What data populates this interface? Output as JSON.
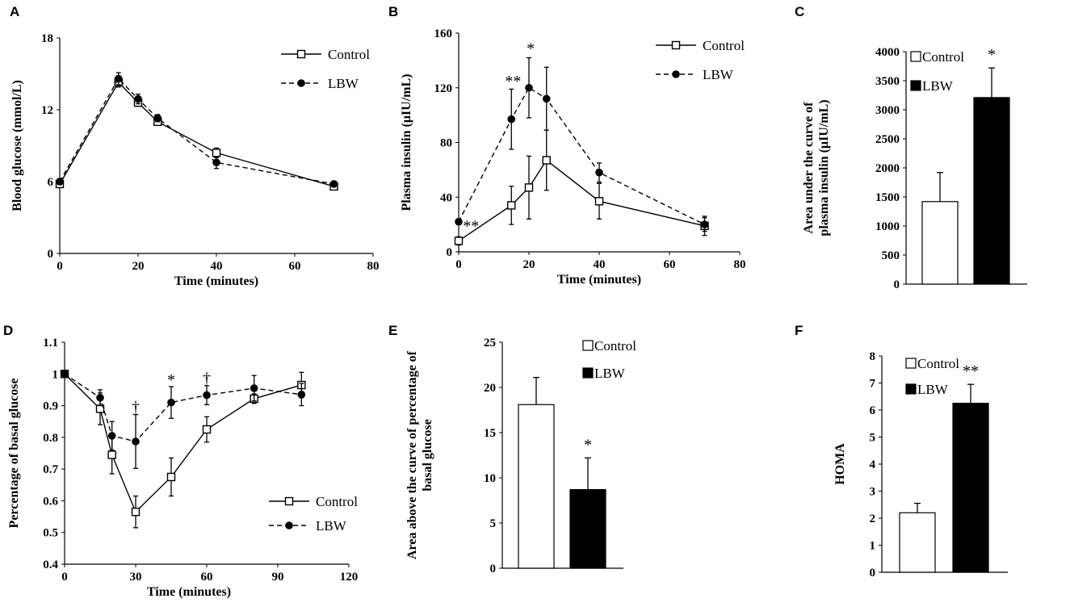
{
  "colors": {
    "ink": "#000000",
    "control_fill": "#ffffff",
    "lbw_fill": "#000000"
  },
  "chart_data": [
    {
      "panel": "A",
      "type": "line",
      "title": "",
      "xlabel": "Time (minutes)",
      "ylabel": "Blood glucose (mmol/L)",
      "xlim": [
        0,
        80
      ],
      "ylim": [
        0,
        18
      ],
      "xticks": [
        0,
        20,
        40,
        60,
        80
      ],
      "yticks": [
        0,
        6,
        12,
        18
      ],
      "legend_position": "top-right",
      "series": [
        {
          "name": "Control",
          "marker": "open-square",
          "style": "solid",
          "x": [
            0,
            15,
            20,
            25,
            40,
            70
          ],
          "y": [
            5.8,
            14.3,
            12.6,
            11.0,
            8.4,
            5.6
          ],
          "err": [
            0.25,
            0.4,
            0.3,
            0.3,
            0.4,
            0.2
          ]
        },
        {
          "name": "LBW",
          "marker": "filled-circle",
          "style": "dashed",
          "x": [
            0,
            15,
            20,
            25,
            40,
            70
          ],
          "y": [
            6.0,
            14.6,
            12.9,
            11.3,
            7.6,
            5.8
          ],
          "err": [
            0.25,
            0.5,
            0.4,
            0.3,
            0.5,
            0.2
          ]
        }
      ],
      "annotations": []
    },
    {
      "panel": "B",
      "type": "line",
      "title": "",
      "xlabel": "Time (minutes)",
      "ylabel": "Plasma insulin (μIU/mL)",
      "xlim": [
        0,
        80
      ],
      "ylim": [
        0,
        160
      ],
      "xticks": [
        0,
        20,
        40,
        60,
        80
      ],
      "yticks": [
        0,
        40,
        80,
        120,
        160
      ],
      "legend_position": "top-right",
      "series": [
        {
          "name": "Control",
          "marker": "open-square",
          "style": "solid",
          "x": [
            0,
            15,
            20,
            25,
            40,
            70
          ],
          "y": [
            8,
            34,
            47,
            67,
            37,
            19
          ],
          "err": [
            3,
            14,
            23,
            22,
            13,
            7
          ]
        },
        {
          "name": "LBW",
          "marker": "filled-circle",
          "style": "dashed",
          "x": [
            0,
            15,
            20,
            25,
            40,
            70
          ],
          "y": [
            22,
            97,
            120,
            112,
            58,
            20
          ],
          "err": [
            2,
            22,
            22,
            23,
            7,
            5
          ]
        }
      ],
      "annotations": [
        {
          "text": "**",
          "x": 3.5,
          "y": 15
        },
        {
          "text": "**",
          "x": 15.5,
          "y": 121
        },
        {
          "text": "*",
          "x": 20.5,
          "y": 145
        }
      ]
    },
    {
      "panel": "C",
      "type": "bar",
      "title": "",
      "xlabel": "",
      "ylabel": "Area under the curve of plasma insulin (μIU/mL)",
      "ylim": [
        0,
        4000
      ],
      "yticks": [
        0,
        500,
        1000,
        1500,
        2000,
        2500,
        3000,
        3500,
        4000
      ],
      "categories": [
        "Control",
        "LBW"
      ],
      "values": [
        1420,
        3210
      ],
      "err": [
        500,
        510
      ],
      "legend_position": "top-left",
      "annotations": [
        {
          "text": "*",
          "category": 1
        }
      ]
    },
    {
      "panel": "D",
      "type": "line",
      "title": "",
      "xlabel": "Time (minutes)",
      "ylabel": "Percentage of basal glucose",
      "xlim": [
        0,
        120
      ],
      "ylim": [
        0.4,
        1.1
      ],
      "xticks": [
        0,
        30,
        60,
        90,
        120
      ],
      "yticks": [
        0.4,
        0.5,
        0.6,
        0.7,
        0.8,
        0.9,
        1.0,
        1.1
      ],
      "legend_position": "bottom-right",
      "series": [
        {
          "name": "Control",
          "marker": "open-square",
          "style": "solid",
          "x": [
            0,
            15,
            20,
            30,
            45,
            60,
            80,
            100
          ],
          "y": [
            1.0,
            0.89,
            0.745,
            0.565,
            0.675,
            0.825,
            0.922,
            0.965
          ],
          "err": [
            0,
            0.05,
            0.06,
            0.05,
            0.06,
            0.04,
            0.015,
            0.04
          ]
        },
        {
          "name": "LBW",
          "marker": "filled-circle",
          "style": "dashed",
          "x": [
            0,
            15,
            20,
            30,
            45,
            60,
            80,
            100
          ],
          "y": [
            1.0,
            0.925,
            0.805,
            0.787,
            0.91,
            0.933,
            0.955,
            0.935
          ],
          "err": [
            0,
            0.025,
            0.045,
            0.085,
            0.05,
            0.03,
            0.04,
            0.035
          ]
        }
      ],
      "annotations": [
        {
          "text": "†",
          "x": 30,
          "y": 0.88
        },
        {
          "text": "*",
          "x": 45,
          "y": 0.965
        },
        {
          "text": "†",
          "x": 60,
          "y": 0.97
        }
      ]
    },
    {
      "panel": "E",
      "type": "bar",
      "title": "",
      "xlabel": "",
      "ylabel": "Area above the curve of percentage of basal glucose",
      "ylim": [
        0,
        25
      ],
      "yticks": [
        0,
        5,
        10,
        15,
        20,
        25
      ],
      "categories": [
        "Control",
        "LBW"
      ],
      "values": [
        18.1,
        8.7
      ],
      "err": [
        3.0,
        3.5
      ],
      "legend_position": "top-right",
      "annotations": [
        {
          "text": "*",
          "category": 1
        }
      ]
    },
    {
      "panel": "F",
      "type": "bar",
      "title": "",
      "xlabel": "",
      "ylabel": "HOMA",
      "ylim": [
        0,
        8
      ],
      "yticks": [
        0,
        1,
        2,
        3,
        4,
        5,
        6,
        7,
        8
      ],
      "categories": [
        "Control",
        "LBW"
      ],
      "values": [
        2.2,
        6.25
      ],
      "err": [
        0.35,
        0.7
      ],
      "legend_position": "top-left",
      "annotations": [
        {
          "text": "**",
          "category": 1
        }
      ]
    }
  ]
}
